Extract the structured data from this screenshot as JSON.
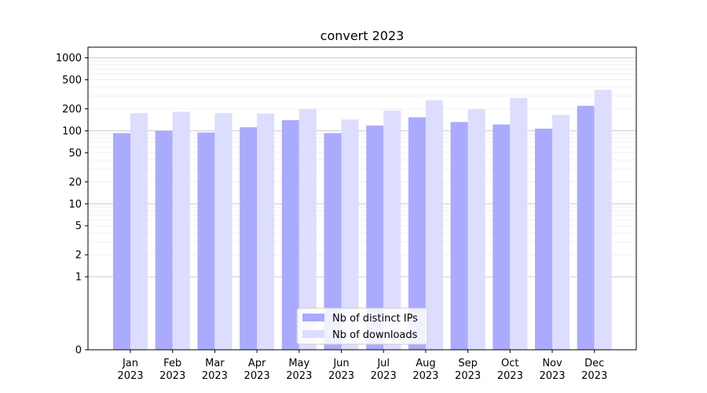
{
  "chart_data": {
    "type": "bar",
    "title": "convert 2023",
    "xlabel": "",
    "ylabel": "",
    "yscale": "symlog",
    "ylim": [
      0,
      1400
    ],
    "yticks": [
      {
        "value": 0,
        "label": "0"
      },
      {
        "value": 1,
        "label": "1"
      },
      {
        "value": 2,
        "label": "2"
      },
      {
        "value": 5,
        "label": "5"
      },
      {
        "value": 10,
        "label": "10"
      },
      {
        "value": 20,
        "label": "20"
      },
      {
        "value": 50,
        "label": "50"
      },
      {
        "value": 100,
        "label": "100"
      },
      {
        "value": 200,
        "label": "200"
      },
      {
        "value": 500,
        "label": "500"
      },
      {
        "value": 1000,
        "label": "1000"
      }
    ],
    "categories": [
      "Jan\n2023",
      "Feb\n2023",
      "Mar\n2023",
      "Apr\n2023",
      "May\n2023",
      "Jun\n2023",
      "Jul\n2023",
      "Aug\n2023",
      "Sep\n2023",
      "Oct\n2023",
      "Nov\n2023",
      "Dec\n2023"
    ],
    "series": [
      {
        "name": "Nb of distinct IPs",
        "color": "#aaaaff",
        "values": [
          93,
          100,
          95,
          112,
          140,
          93,
          118,
          153,
          132,
          122,
          107,
          220
        ]
      },
      {
        "name": "Nb of downloads",
        "color": "#ddddff",
        "values": [
          175,
          182,
          175,
          172,
          200,
          143,
          190,
          262,
          197,
          283,
          165,
          365
        ]
      }
    ],
    "grid": true,
    "legend_position": "bottom-center"
  }
}
